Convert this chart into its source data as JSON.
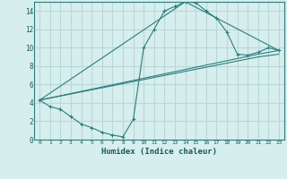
{
  "title": "",
  "xlabel": "Humidex (Indice chaleur)",
  "ylabel": "",
  "background_color": "#d7eeee",
  "line_color": "#2d7d7d",
  "grid_color": "#b8d8d8",
  "xlim": [
    -0.5,
    23.5
  ],
  "ylim": [
    0,
    15
  ],
  "yticks": [
    0,
    2,
    4,
    6,
    8,
    10,
    12,
    14
  ],
  "xticks": [
    0,
    1,
    2,
    3,
    4,
    5,
    6,
    7,
    8,
    9,
    10,
    11,
    12,
    13,
    14,
    15,
    16,
    17,
    18,
    19,
    20,
    21,
    22,
    23
  ],
  "line1_x": [
    0,
    1,
    2,
    3,
    4,
    5,
    6,
    7,
    8,
    9,
    10,
    11,
    12,
    13,
    14,
    15,
    16,
    17,
    18,
    19,
    20,
    21,
    22,
    23
  ],
  "line1_y": [
    4.3,
    3.6,
    3.3,
    2.5,
    1.7,
    1.3,
    0.8,
    0.5,
    0.3,
    2.2,
    10.0,
    12.0,
    14.0,
    14.5,
    15.0,
    14.9,
    14.0,
    13.2,
    11.7,
    9.3,
    9.2,
    9.5,
    10.0,
    9.7
  ],
  "line2_x": [
    0,
    14,
    23
  ],
  "line2_y": [
    4.3,
    15.0,
    9.7
  ],
  "line3_x": [
    0,
    21,
    23
  ],
  "line3_y": [
    4.3,
    9.3,
    9.7
  ],
  "line4_x": [
    0,
    21,
    23
  ],
  "line4_y": [
    4.3,
    9.0,
    9.3
  ]
}
